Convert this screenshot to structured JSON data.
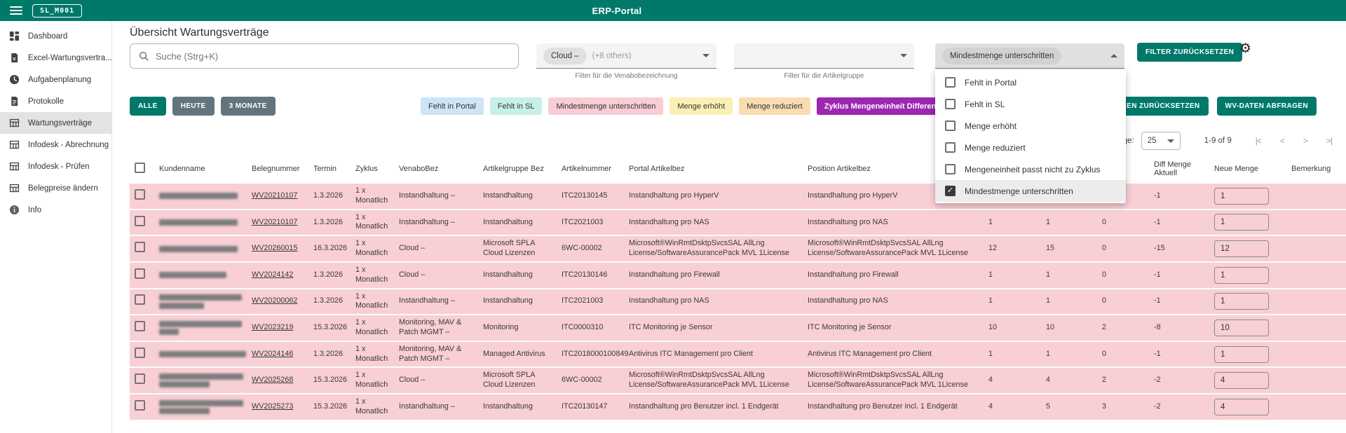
{
  "topbar": {
    "badge": "SL_M001",
    "title": "ERP-Portal"
  },
  "sidebar": {
    "items": [
      {
        "label": "Dashboard",
        "icon": "dashboard-icon",
        "active": false
      },
      {
        "label": "Excel-Wartungsvertra...",
        "icon": "excel-file-icon",
        "active": false
      },
      {
        "label": "Aufgabenplanung",
        "icon": "clock-icon",
        "active": false
      },
      {
        "label": "Protokolle",
        "icon": "document-icon",
        "active": false
      },
      {
        "label": "Wartungsverträge",
        "icon": "table-icon",
        "active": true
      },
      {
        "label": "Infodesk - Abrechnung",
        "icon": "table-icon",
        "active": false
      },
      {
        "label": "Infodesk - Prüfen",
        "icon": "table-icon",
        "active": false
      },
      {
        "label": "Belegpreise ändern",
        "icon": "table-icon",
        "active": false
      },
      {
        "label": "Info",
        "icon": "info-icon",
        "active": false
      }
    ]
  },
  "page": {
    "title": "Übersicht Wartungsverträge"
  },
  "search": {
    "placeholder": "Suche (Strg+K)"
  },
  "filters": {
    "venabo": {
      "chip": "Cloud –",
      "extra": "(+8 others)",
      "helper": "Filter für die Venabobezeichnung"
    },
    "artikelgruppe": {
      "chip": "",
      "extra": "",
      "helper": "Filter für die Artikelgruppe"
    },
    "status": {
      "chip": "Mindestmenge unterschritten"
    },
    "reset_label": "FILTER ZURÜCKSETZEN"
  },
  "status_menu": {
    "items": [
      {
        "label": "Fehlt in Portal",
        "checked": false
      },
      {
        "label": "Fehlt in SL",
        "checked": false
      },
      {
        "label": "Menge erhöht",
        "checked": false
      },
      {
        "label": "Menge reduziert",
        "checked": false
      },
      {
        "label": "Mengeneinheit passt nicht zu Zyklus",
        "checked": false
      },
      {
        "label": "Mindestmenge unterschritten",
        "checked": true
      }
    ]
  },
  "quick_filters": [
    {
      "label": "ALLE",
      "active": true
    },
    {
      "label": "HEUTE",
      "active": false
    },
    {
      "label": "3 MONATE",
      "active": false
    }
  ],
  "legend_chips": [
    {
      "label": "Fehlt in Portal",
      "bg": "#cfe4f6",
      "fg": "#333333"
    },
    {
      "label": "Fehlt in SL",
      "bg": "#c7f0e6",
      "fg": "#333333"
    },
    {
      "label": "Mindestmenge unterschritten",
      "bg": "#f9cdd4",
      "fg": "#333333"
    },
    {
      "label": "Menge erhöht",
      "bg": "#faf0b5",
      "fg": "#333333"
    },
    {
      "label": "Menge reduziert",
      "bg": "#fadcb2",
      "fg": "#333333"
    },
    {
      "label": "Zyklus Mengeneinheit Differenz",
      "bg": "#9c27b0",
      "fg": "#ffffff"
    }
  ],
  "actions": {
    "revert": "ÄNDERUNGEN ZURÜCKSETZEN",
    "fetch": "WV-DATEN ABFRAGEN"
  },
  "pagination": {
    "per_page_label": "Items per page:",
    "per_page": "25",
    "range": "1-9 of 9",
    "first": "|<",
    "prev": "<",
    "next": ">",
    "last": ">|"
  },
  "table": {
    "headers": [
      "Kundenname",
      "Belegnummer",
      "Termin",
      "Zyklus",
      "VenaboBez",
      "Artikelgruppe Bez",
      "Artikelnummer",
      "Portal Artikelbez",
      "Position Artikelbez",
      "",
      "",
      "",
      "Diff Menge Aktuell",
      "Neue Menge",
      "Bemerkung"
    ],
    "rows": [
      {
        "redacted_lines": [
          112
        ],
        "beleg": "WV20210107",
        "termin": "1.3.2026",
        "zyklus": "1 x Monatlich",
        "venabo": "Instandhaltung –",
        "gruppe": "Instandhaltung",
        "artnr": "ITC20130145",
        "portal": "Instandhaltung pro HyperV",
        "position": "Instandhaltung pro HyperV",
        "m1": "",
        "m2": "",
        "m3": "",
        "diff": "-1",
        "neu": "1",
        "bem": ""
      },
      {
        "redacted_lines": [
          112
        ],
        "beleg": "WV20210107",
        "termin": "1.3.2026",
        "zyklus": "1 x Monatlich",
        "venabo": "Instandhaltung –",
        "gruppe": "Instandhaltung",
        "artnr": "ITC2021003",
        "portal": "Instandhaltung pro NAS",
        "position": "Instandhaltung pro NAS",
        "m1": "1",
        "m2": "1",
        "m3": "0",
        "diff": "-1",
        "neu": "1",
        "bem": ""
      },
      {
        "redacted_lines": [
          112
        ],
        "beleg": "WV20260015",
        "termin": "16.3.2026",
        "zyklus": "1 x Monatlich",
        "venabo": "Cloud –",
        "gruppe": "Microsoft SPLA Cloud Lizenzen",
        "artnr": "6WC-00002",
        "portal": "Microsoft®WinRmtDsktpSvcsSAL AllLng License/SoftwareAssurancePack MVL 1License",
        "position": "Microsoft®WinRmtDsktpSvcsSAL AllLng License/SoftwareAssurancePack MVL 1License",
        "m1": "12",
        "m2": "15",
        "m3": "0",
        "diff": "-15",
        "neu": "12",
        "bem": ""
      },
      {
        "redacted_lines": [
          96
        ],
        "beleg": "WV2024142",
        "termin": "1.3.2026",
        "zyklus": "1 x Monatlich",
        "venabo": "Cloud –",
        "gruppe": "Instandhaltung",
        "artnr": "ITC20130146",
        "portal": "Instandhaltung pro Firewall",
        "position": "Instandhaltung pro Firewall",
        "m1": "1",
        "m2": "1",
        "m3": "0",
        "diff": "-1",
        "neu": "1",
        "bem": ""
      },
      {
        "redacted_lines": [
          118,
          64
        ],
        "beleg": "WV20200062",
        "termin": "1.3.2026",
        "zyklus": "1 x Monatlich",
        "venabo": "Instandhaltung –",
        "gruppe": "Instandhaltung",
        "artnr": "ITC2021003",
        "portal": "Instandhaltung pro NAS",
        "position": "Instandhaltung pro NAS",
        "m1": "1",
        "m2": "1",
        "m3": "0",
        "diff": "-1",
        "neu": "1",
        "bem": ""
      },
      {
        "redacted_lines": [
          118,
          28
        ],
        "beleg": "WV2023219",
        "termin": "15.3.2026",
        "zyklus": "1 x Monatlich",
        "venabo": "Monitoring, MAV & Patch MGMT –",
        "gruppe": "Monitoring",
        "artnr": "ITC0000310",
        "portal": "ITC Monitoring je Sensor",
        "position": "ITC Monitoring je Sensor",
        "m1": "10",
        "m2": "10",
        "m3": "2",
        "diff": "-8",
        "neu": "10",
        "bem": ""
      },
      {
        "redacted_lines": [
          124
        ],
        "beleg": "WV2024146",
        "termin": "1.3.2026",
        "zyklus": "1 x Monatlich",
        "venabo": "Monitoring, MAV & Patch MGMT –",
        "gruppe": "Managed Antivirus",
        "artnr": "ITC2018000100849",
        "portal": "Antivirus ITC Management pro Client",
        "position": "Antivirus ITC Management pro Client",
        "m1": "1",
        "m2": "1",
        "m3": "0",
        "diff": "-1",
        "neu": "1",
        "bem": ""
      },
      {
        "redacted_lines": [
          120,
          72
        ],
        "beleg": "WV2025268",
        "termin": "15.3.2026",
        "zyklus": "1 x Monatlich",
        "venabo": "Cloud –",
        "gruppe": "Microsoft SPLA Cloud Lizenzen",
        "artnr": "6WC-00002",
        "portal": "Microsoft®WinRmtDsktpSvcsSAL AllLng License/SoftwareAssurancePack MVL 1License",
        "position": "Microsoft®WinRmtDsktpSvcsSAL AllLng License/SoftwareAssurancePack MVL 1License",
        "m1": "4",
        "m2": "4",
        "m3": "2",
        "diff": "-2",
        "neu": "4",
        "bem": ""
      },
      {
        "redacted_lines": [
          120,
          72
        ],
        "beleg": "WV2025273",
        "termin": "15.3.2026",
        "zyklus": "1 x Monatlich",
        "venabo": "Instandhaltung –",
        "gruppe": "Instandhaltung",
        "artnr": "ITC20130147",
        "portal": "Instandhaltung pro Benutzer incl. 1 Endgerät",
        "position": "Instandhaltung pro Benutzer incl. 1 Endgerät",
        "m1": "4",
        "m2": "5",
        "m3": "3",
        "diff": "-2",
        "neu": "4",
        "bem": ""
      }
    ]
  },
  "colors": {
    "accent": "#00796b",
    "row_highlight": "#f8cfd4",
    "menu_selected": "#ececec"
  }
}
